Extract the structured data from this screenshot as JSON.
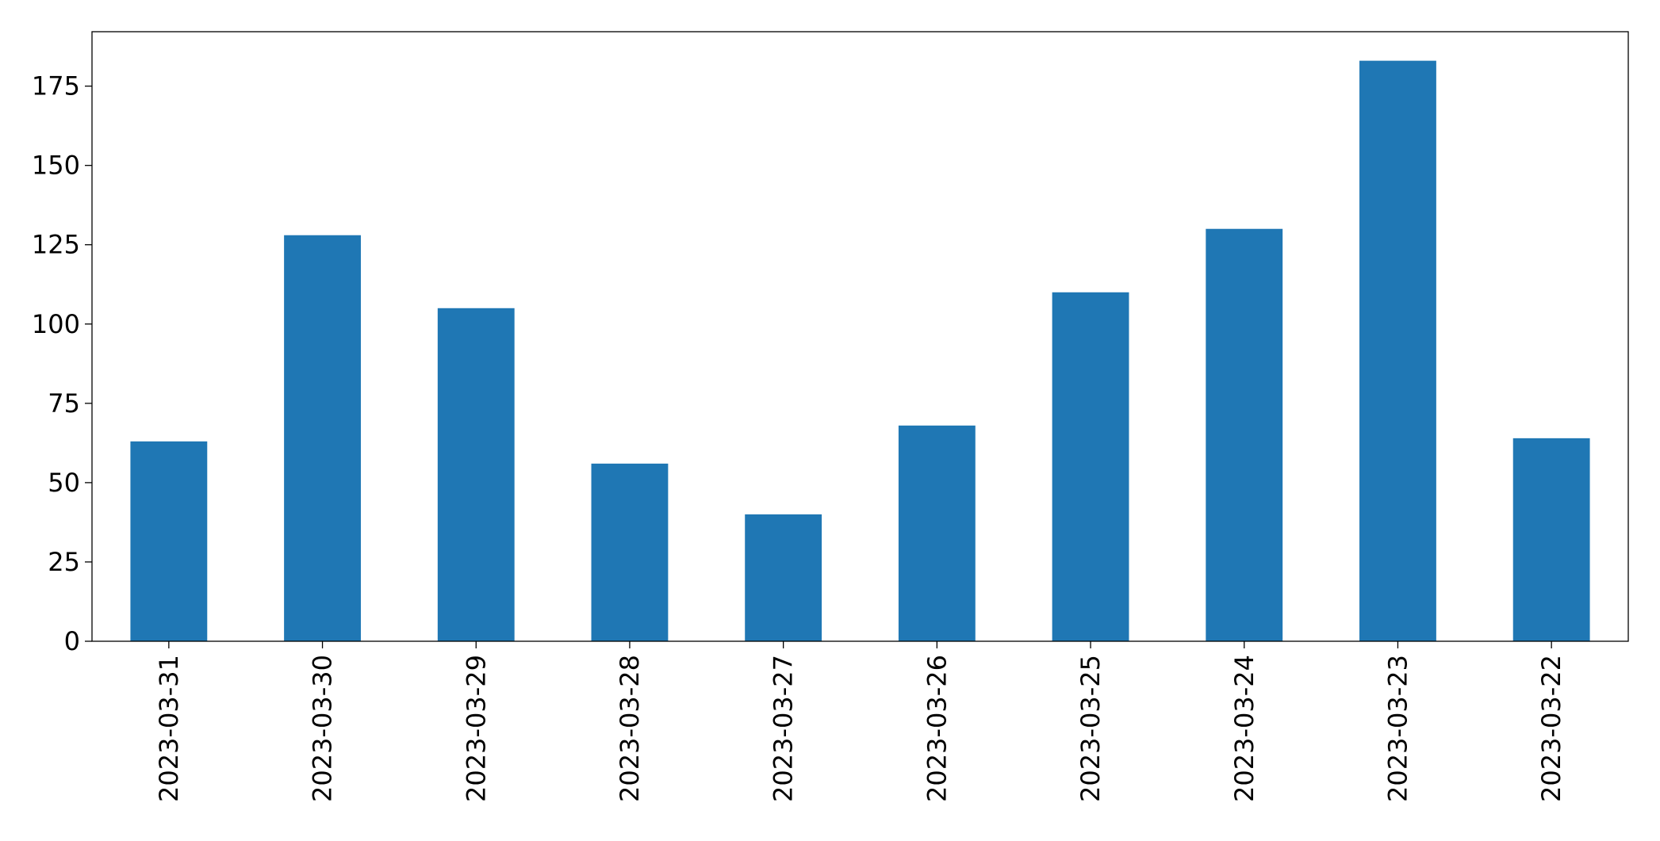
{
  "chart_data": {
    "type": "bar",
    "categories": [
      "2023-03-31",
      "2023-03-30",
      "2023-03-29",
      "2023-03-28",
      "2023-03-27",
      "2023-03-26",
      "2023-03-25",
      "2023-03-24",
      "2023-03-23",
      "2023-03-22"
    ],
    "values": [
      63,
      128,
      105,
      56,
      40,
      68,
      110,
      130,
      183,
      64
    ],
    "color": "#1f77b4",
    "ylim": [
      0,
      192.15
    ],
    "yticks": [
      0,
      25,
      50,
      75,
      100,
      125,
      150,
      175
    ],
    "grid": false
  }
}
